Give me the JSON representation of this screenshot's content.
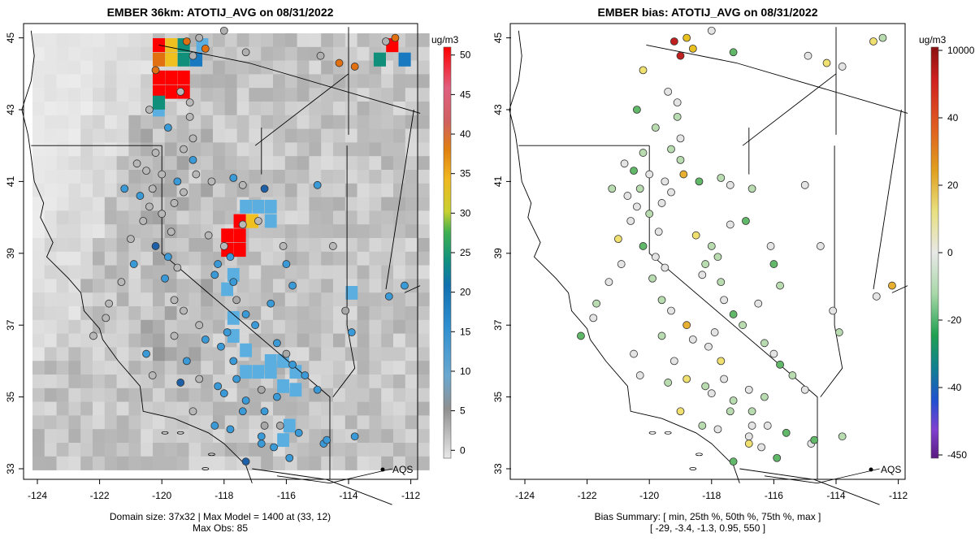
{
  "chart_data": [
    {
      "type": "map",
      "title": "EMBER 36km: ATOTIJ_AVG on 08/31/2022",
      "xlim": [
        -124.3,
        -111.7
      ],
      "ylim": [
        32.6,
        45.3
      ],
      "x_ticks": [
        "-124",
        "-122",
        "-120",
        "-118",
        "-116",
        "-114",
        "-112"
      ],
      "y_ticks": [
        "33",
        "35",
        "37",
        "39",
        "41",
        "43",
        "45"
      ],
      "colorbar": {
        "unit": "ug/m3",
        "labels": [
          "0",
          "5",
          "10",
          "15",
          "20",
          "25",
          "30",
          "35",
          "40",
          "45",
          "50"
        ],
        "range": [
          -1,
          51
        ]
      },
      "legend_label": "AQS",
      "footer_lines": [
        "Domain size: 37x32 | Max Model = 1400 at (33, 12)",
        "Max Obs: 85"
      ],
      "max_model": 1400,
      "max_obs": 85,
      "domain_size": "37x32",
      "hot_cells": [
        {
          "lon": -120.1,
          "lat": 44.8,
          "value": 48
        },
        {
          "lon": -119.7,
          "lat": 44.8,
          "value": 32
        },
        {
          "lon": -119.3,
          "lat": 44.8,
          "value": 20
        },
        {
          "lon": -120.1,
          "lat": 44.4,
          "value": 38
        },
        {
          "lon": -119.7,
          "lat": 44.4,
          "value": 35
        },
        {
          "lon": -119.3,
          "lat": 44.4,
          "value": 22
        },
        {
          "lon": -118.9,
          "lat": 44.4,
          "value": 18
        },
        {
          "lon": -120.1,
          "lat": 43.9,
          "value": 55
        },
        {
          "lon": -119.7,
          "lat": 43.9,
          "value": 55
        },
        {
          "lon": -119.3,
          "lat": 43.9,
          "value": 50
        },
        {
          "lon": -120.1,
          "lat": 43.5,
          "value": 55
        },
        {
          "lon": -119.7,
          "lat": 43.5,
          "value": 55
        },
        {
          "lon": -119.3,
          "lat": 43.5,
          "value": 55
        },
        {
          "lon": -120.1,
          "lat": 43.2,
          "value": 22
        },
        {
          "lon": -117.5,
          "lat": 39.9,
          "value": 55
        },
        {
          "lon": -117.1,
          "lat": 39.9,
          "value": 30
        },
        {
          "lon": -117.9,
          "lat": 39.5,
          "value": 55
        },
        {
          "lon": -117.5,
          "lat": 39.5,
          "value": 55
        },
        {
          "lon": -117.9,
          "lat": 39.1,
          "value": 55
        },
        {
          "lon": -117.5,
          "lat": 39.1,
          "value": 55
        },
        {
          "lon": -112.6,
          "lat": 44.8,
          "value": 55
        },
        {
          "lon": -112.2,
          "lat": 44.4,
          "value": 17
        },
        {
          "lon": -113.0,
          "lat": 44.4,
          "value": 20
        }
      ]
    },
    {
      "type": "map",
      "title": "EMBER bias: ATOTIJ_AVG on 08/31/2022",
      "xlim": [
        -124.3,
        -111.7
      ],
      "ylim": [
        32.6,
        45.3
      ],
      "x_ticks": [
        "-124",
        "-122",
        "-120",
        "-118",
        "-116",
        "-114",
        "-112"
      ],
      "y_ticks": [
        "33",
        "35",
        "37",
        "39",
        "41",
        "43",
        "45"
      ],
      "colorbar": {
        "unit": "ug/m3",
        "labels": [
          "10000",
          "40",
          "20",
          "0",
          "-20",
          "-40",
          "-450"
        ]
      },
      "legend_label": "AQS",
      "footer_lines": [
        "Bias Summary: [ min, 25th %, 50th %, 75th %, max ]",
        "[ -29,   -3.4,   -1.3,   0.95,   550 ]"
      ],
      "bias_summary": {
        "min": -29,
        "p25": -3.4,
        "p50": -1.3,
        "p75": 0.95,
        "max": 550
      }
    }
  ],
  "colors": {
    "red": "#ff0000",
    "orange": "#e07010",
    "yellow": "#f0d020",
    "green": "#20a050",
    "teal": "#10907a",
    "blue": "#2090d0",
    "gray": "#c8c8c8",
    "purple": "#7030a0"
  }
}
